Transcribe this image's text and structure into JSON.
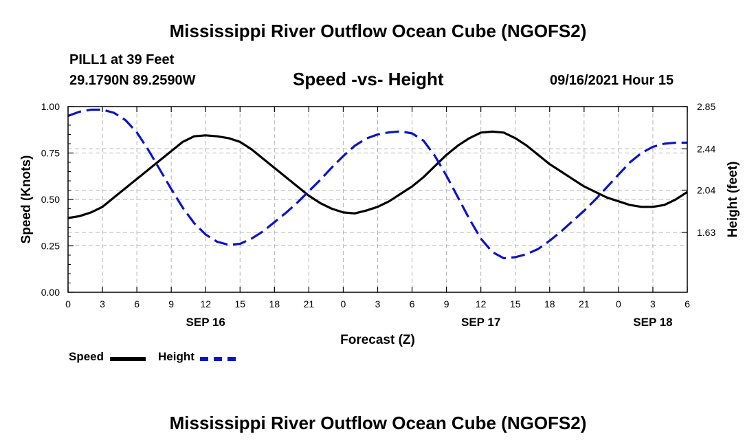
{
  "header": {
    "title": "Mississippi River Outflow Ocean Cube (NGOFS2)",
    "station": "PILL1 at 39 Feet",
    "coordinates": "29.1790N  89.2590W",
    "chart_title": "Speed -vs- Height",
    "date": "09/16/2021 Hour 15"
  },
  "footer": {
    "title": "Mississippi River Outflow Ocean Cube (NGOFS2)"
  },
  "legend": {
    "speed_label": "Speed",
    "height_label": "Height"
  },
  "colors": {
    "speed": "#000000",
    "height": "#0a14c8",
    "grid": "#b4b4b4"
  },
  "chart_data": {
    "type": "line",
    "title": "Speed -vs- Height",
    "xlabel": "Forecast (Z)",
    "ylabel": "Speed (Knots)",
    "y2label": "Height (feet)",
    "xlim": [
      0,
      54
    ],
    "ylim": [
      0,
      1.0
    ],
    "y2lim": [
      1.05,
      2.85
    ],
    "x_ticks": [
      0,
      3,
      6,
      9,
      12,
      15,
      18,
      21,
      24,
      27,
      30,
      33,
      36,
      39,
      42,
      45,
      48,
      51,
      54
    ],
    "x_tick_labels": [
      "0",
      "3",
      "6",
      "9",
      "12",
      "15",
      "18",
      "21",
      "0",
      "3",
      "6",
      "9",
      "12",
      "15",
      "18",
      "21",
      "0",
      "3",
      "6"
    ],
    "date_labels": [
      {
        "x": 12,
        "label": "SEP 16"
      },
      {
        "x": 36,
        "label": "SEP 17"
      },
      {
        "x": 51,
        "label": "SEP 18"
      }
    ],
    "y_ticks": [
      0,
      0.25,
      0.5,
      0.75,
      1.0
    ],
    "y_tick_labels": [
      "0.00",
      "0.25",
      "0.50",
      "0.75",
      "1.00"
    ],
    "y2_ticks": [
      1.63,
      2.04,
      2.44,
      2.85
    ],
    "y2_tick_labels": [
      "1.63",
      "2.04",
      "2.44",
      "2.85"
    ],
    "grid": true,
    "series": [
      {
        "name": "Speed",
        "axis": "left",
        "style": "solid",
        "x": [
          0,
          1,
          2,
          3,
          4,
          5,
          6,
          7,
          8,
          9,
          10,
          11,
          12,
          13,
          14,
          15,
          16,
          17,
          18,
          19,
          20,
          21,
          22,
          23,
          24,
          25,
          26,
          27,
          28,
          29,
          30,
          31,
          32,
          33,
          34,
          35,
          36,
          37,
          38,
          39,
          40,
          41,
          42,
          43,
          44,
          45,
          46,
          47,
          48,
          49,
          50,
          51,
          52,
          53,
          54
        ],
        "values": [
          0.4,
          0.41,
          0.43,
          0.46,
          0.51,
          0.56,
          0.61,
          0.66,
          0.71,
          0.76,
          0.81,
          0.84,
          0.845,
          0.84,
          0.83,
          0.81,
          0.77,
          0.72,
          0.67,
          0.62,
          0.57,
          0.52,
          0.48,
          0.45,
          0.43,
          0.425,
          0.44,
          0.46,
          0.49,
          0.53,
          0.57,
          0.62,
          0.68,
          0.74,
          0.79,
          0.83,
          0.86,
          0.865,
          0.86,
          0.83,
          0.79,
          0.74,
          0.69,
          0.65,
          0.61,
          0.57,
          0.54,
          0.51,
          0.49,
          0.47,
          0.46,
          0.46,
          0.47,
          0.5,
          0.54
        ]
      },
      {
        "name": "Height",
        "axis": "right",
        "style": "dashed",
        "x": [
          0,
          1,
          2,
          3,
          4,
          5,
          6,
          7,
          8,
          9,
          10,
          11,
          12,
          13,
          14,
          15,
          16,
          17,
          18,
          19,
          20,
          21,
          22,
          23,
          24,
          25,
          26,
          27,
          28,
          29,
          30,
          31,
          32,
          33,
          34,
          35,
          36,
          37,
          38,
          39,
          40,
          41,
          42,
          43,
          44,
          45,
          46,
          47,
          48,
          49,
          50,
          51,
          52,
          53,
          54
        ],
        "values": [
          2.76,
          2.8,
          2.82,
          2.82,
          2.79,
          2.72,
          2.6,
          2.43,
          2.24,
          2.05,
          1.87,
          1.72,
          1.61,
          1.54,
          1.51,
          1.52,
          1.57,
          1.64,
          1.73,
          1.82,
          1.92,
          2.03,
          2.14,
          2.26,
          2.37,
          2.47,
          2.54,
          2.58,
          2.6,
          2.61,
          2.59,
          2.52,
          2.37,
          2.18,
          1.97,
          1.76,
          1.57,
          1.44,
          1.38,
          1.39,
          1.42,
          1.47,
          1.55,
          1.64,
          1.74,
          1.84,
          1.95,
          2.07,
          2.19,
          2.31,
          2.4,
          2.46,
          2.49,
          2.5,
          2.5
        ]
      }
    ]
  }
}
